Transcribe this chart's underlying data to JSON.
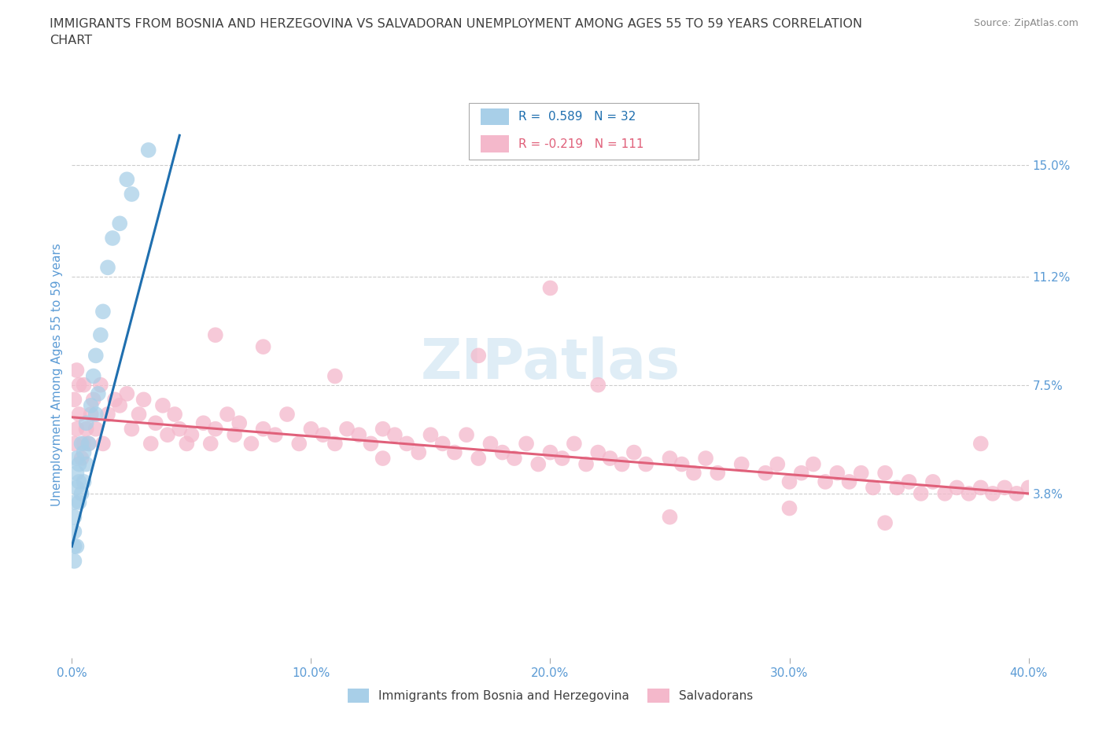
{
  "title": "IMMIGRANTS FROM BOSNIA AND HERZEGOVINA VS SALVADORAN UNEMPLOYMENT AMONG AGES 55 TO 59 YEARS CORRELATION\nCHART",
  "source": "Source: ZipAtlas.com",
  "ylabel": "Unemployment Among Ages 55 to 59 years",
  "xlim": [
    0.0,
    0.4
  ],
  "ylim": [
    -0.018,
    0.175
  ],
  "ytick_vals": [
    0.038,
    0.075,
    0.112,
    0.15
  ],
  "ytick_labels": [
    "3.8%",
    "7.5%",
    "11.2%",
    "15.0%"
  ],
  "xticks": [
    0.0,
    0.1,
    0.2,
    0.3,
    0.4
  ],
  "xtick_labels": [
    "0.0%",
    "10.0%",
    "20.0%",
    "30.0%",
    "40.0%"
  ],
  "watermark": "ZIPatlas",
  "legend_blue_label": "Immigrants from Bosnia and Herzegovina",
  "legend_pink_label": "Salvadorans",
  "blue_R": "R =  0.589",
  "blue_N": "N = 32",
  "pink_R": "R = -0.219",
  "pink_N": "N = 111",
  "blue_color": "#a8cfe8",
  "pink_color": "#f4b8cb",
  "blue_line_color": "#1f6faf",
  "pink_line_color": "#e0607a",
  "background_color": "#ffffff",
  "grid_color": "#cccccc",
  "title_color": "#404040",
  "tick_label_color": "#5b9bd5",
  "blue_points_x": [
    0.001,
    0.001,
    0.001,
    0.001,
    0.001,
    0.002,
    0.002,
    0.002,
    0.002,
    0.003,
    0.003,
    0.003,
    0.004,
    0.004,
    0.005,
    0.005,
    0.006,
    0.006,
    0.007,
    0.008,
    0.009,
    0.01,
    0.01,
    0.011,
    0.012,
    0.013,
    0.015,
    0.017,
    0.02,
    0.023,
    0.025,
    0.032
  ],
  "blue_points_y": [
    0.015,
    0.02,
    0.025,
    0.03,
    0.035,
    0.02,
    0.04,
    0.045,
    0.05,
    0.035,
    0.042,
    0.048,
    0.038,
    0.055,
    0.042,
    0.052,
    0.048,
    0.062,
    0.055,
    0.068,
    0.078,
    0.065,
    0.085,
    0.072,
    0.092,
    0.1,
    0.115,
    0.125,
    0.13,
    0.145,
    0.14,
    0.155
  ],
  "pink_points_x": [
    0.001,
    0.001,
    0.002,
    0.002,
    0.003,
    0.003,
    0.004,
    0.005,
    0.005,
    0.006,
    0.007,
    0.008,
    0.009,
    0.01,
    0.012,
    0.013,
    0.015,
    0.018,
    0.02,
    0.023,
    0.025,
    0.028,
    0.03,
    0.033,
    0.035,
    0.038,
    0.04,
    0.043,
    0.045,
    0.048,
    0.05,
    0.055,
    0.058,
    0.06,
    0.065,
    0.068,
    0.07,
    0.075,
    0.08,
    0.085,
    0.09,
    0.095,
    0.1,
    0.105,
    0.11,
    0.115,
    0.12,
    0.125,
    0.13,
    0.135,
    0.14,
    0.145,
    0.15,
    0.155,
    0.16,
    0.165,
    0.17,
    0.175,
    0.18,
    0.185,
    0.19,
    0.195,
    0.2,
    0.205,
    0.21,
    0.215,
    0.22,
    0.225,
    0.23,
    0.235,
    0.24,
    0.25,
    0.255,
    0.26,
    0.265,
    0.27,
    0.28,
    0.29,
    0.295,
    0.3,
    0.305,
    0.31,
    0.315,
    0.32,
    0.325,
    0.33,
    0.335,
    0.34,
    0.345,
    0.35,
    0.355,
    0.36,
    0.365,
    0.37,
    0.375,
    0.38,
    0.385,
    0.39,
    0.395,
    0.4,
    0.34,
    0.38,
    0.2,
    0.25,
    0.3,
    0.13,
    0.17,
    0.22,
    0.06,
    0.08,
    0.11
  ],
  "pink_points_y": [
    0.055,
    0.07,
    0.06,
    0.08,
    0.065,
    0.075,
    0.05,
    0.055,
    0.075,
    0.06,
    0.055,
    0.065,
    0.07,
    0.06,
    0.075,
    0.055,
    0.065,
    0.07,
    0.068,
    0.072,
    0.06,
    0.065,
    0.07,
    0.055,
    0.062,
    0.068,
    0.058,
    0.065,
    0.06,
    0.055,
    0.058,
    0.062,
    0.055,
    0.06,
    0.065,
    0.058,
    0.062,
    0.055,
    0.06,
    0.058,
    0.065,
    0.055,
    0.06,
    0.058,
    0.055,
    0.06,
    0.058,
    0.055,
    0.06,
    0.058,
    0.055,
    0.052,
    0.058,
    0.055,
    0.052,
    0.058,
    0.05,
    0.055,
    0.052,
    0.05,
    0.055,
    0.048,
    0.052,
    0.05,
    0.055,
    0.048,
    0.052,
    0.05,
    0.048,
    0.052,
    0.048,
    0.05,
    0.048,
    0.045,
    0.05,
    0.045,
    0.048,
    0.045,
    0.048,
    0.042,
    0.045,
    0.048,
    0.042,
    0.045,
    0.042,
    0.045,
    0.04,
    0.045,
    0.04,
    0.042,
    0.038,
    0.042,
    0.038,
    0.04,
    0.038,
    0.04,
    0.038,
    0.04,
    0.038,
    0.04,
    0.028,
    0.055,
    0.108,
    0.03,
    0.033,
    0.05,
    0.085,
    0.075,
    0.092,
    0.088,
    0.078
  ],
  "blue_line_x": [
    0.0,
    0.045
  ],
  "blue_line_y": [
    0.02,
    0.16
  ],
  "pink_line_x": [
    0.0,
    0.4
  ],
  "pink_line_y": [
    0.064,
    0.038
  ]
}
